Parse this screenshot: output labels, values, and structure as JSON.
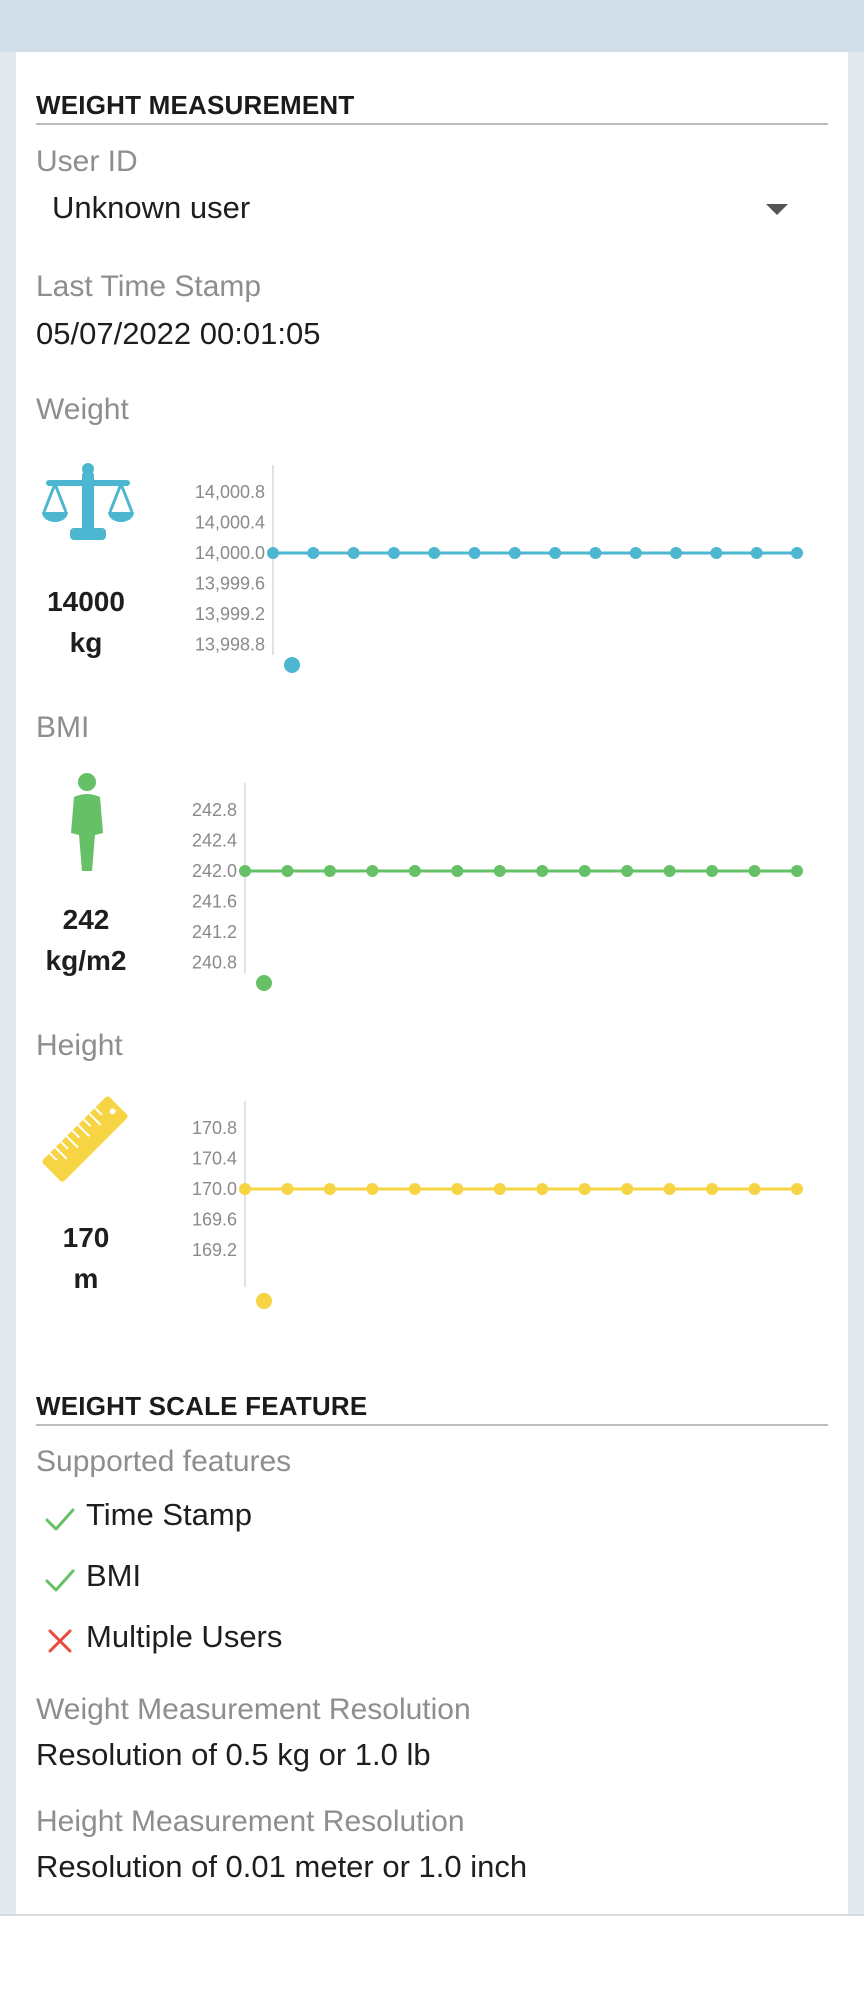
{
  "weight_measurement": {
    "section_title": "WEIGHT MEASUREMENT",
    "user_id": {
      "label": "User ID",
      "selected": "Unknown user"
    },
    "last_timestamp": {
      "label": "Last Time Stamp",
      "value": "05/07/2022 00:01:05"
    },
    "weight": {
      "label": "Weight",
      "value": "14000",
      "unit": "kg",
      "icon": "scale-icon",
      "color": "#4db6d0"
    },
    "bmi": {
      "label": "BMI",
      "value": "242",
      "unit": "kg/m2",
      "icon": "person-icon",
      "color": "#66c065"
    },
    "height": {
      "label": "Height",
      "value": "170",
      "unit": "m",
      "icon": "ruler-icon",
      "color": "#f7d443"
    }
  },
  "chart_data": [
    {
      "type": "line",
      "name": "weight-chart",
      "yticks": [
        "14,000.8",
        "14,000.4",
        "14,000.0",
        "13,999.6",
        "13,999.2",
        "13,998.8"
      ],
      "ylim": [
        13998.8,
        14000.8
      ],
      "values": [
        14000,
        14000,
        14000,
        14000,
        14000,
        14000,
        14000,
        14000,
        14000,
        14000,
        14000,
        14000,
        14000,
        14000
      ],
      "color": "#4db6d0"
    },
    {
      "type": "line",
      "name": "bmi-chart",
      "yticks": [
        "242.8",
        "242.4",
        "242.0",
        "241.6",
        "241.2",
        "240.8"
      ],
      "ylim": [
        240.8,
        242.8
      ],
      "values": [
        242,
        242,
        242,
        242,
        242,
        242,
        242,
        242,
        242,
        242,
        242,
        242,
        242,
        242
      ],
      "color": "#66c065"
    },
    {
      "type": "line",
      "name": "height-chart",
      "yticks": [
        "170.8",
        "170.4",
        "170.0",
        "169.6",
        "169.2"
      ],
      "ylim": [
        169.2,
        170.8
      ],
      "values": [
        170,
        170,
        170,
        170,
        170,
        170,
        170,
        170,
        170,
        170,
        170,
        170,
        170,
        170
      ],
      "color": "#f7d443"
    }
  ],
  "weight_scale_feature": {
    "section_title": "WEIGHT SCALE FEATURE",
    "supported_label": "Supported features",
    "features": [
      {
        "label": "Time Stamp",
        "supported": true,
        "icon": "check-icon"
      },
      {
        "label": "BMI",
        "supported": true,
        "icon": "check-icon"
      },
      {
        "label": "Multiple Users",
        "supported": false,
        "icon": "cross-icon"
      }
    ],
    "weight_resolution": {
      "label": "Weight Measurement Resolution",
      "value": "Resolution of 0.5 kg or 1.0 lb"
    },
    "height_resolution": {
      "label": "Height Measurement Resolution",
      "value": "Resolution of 0.01 meter or 1.0 inch"
    }
  },
  "colors": {
    "check": "#66c065",
    "cross": "#e84a3c"
  }
}
